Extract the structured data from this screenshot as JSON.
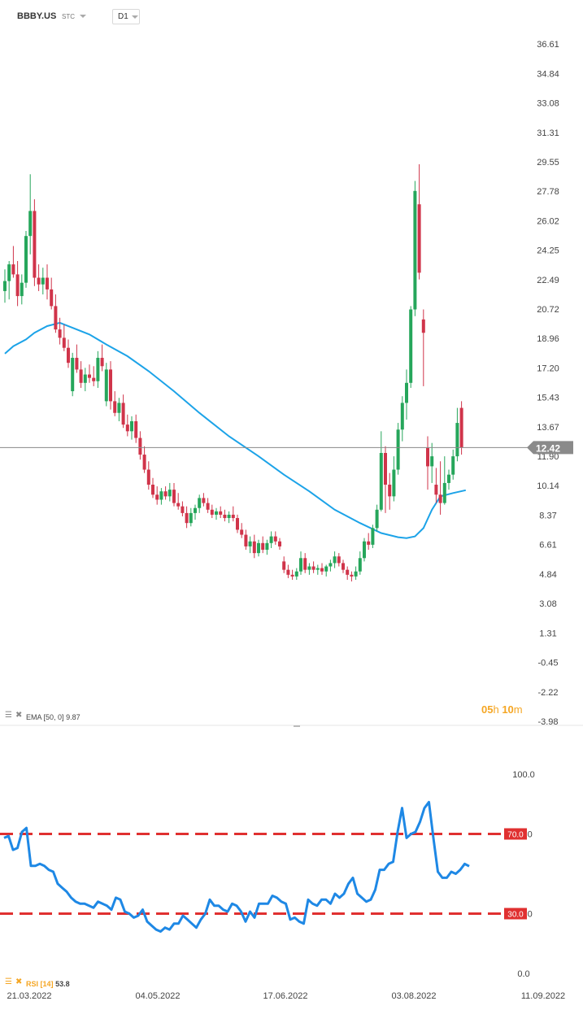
{
  "header": {
    "symbol": "BBBY.US",
    "badge": "STC",
    "timeframe": "D1"
  },
  "timer": {
    "hours": "05",
    "hours_unit": "h",
    "minutes": "10",
    "minutes_unit": "m"
  },
  "colors": {
    "bull": "#26a65b",
    "bear": "#d0344a",
    "ema": "#1ca3e8",
    "rsi": "#1e88e5",
    "rsi_level": "#e03030",
    "price_tag": "#8a8a8a"
  },
  "chart_data": [
    {
      "type": "candlestick",
      "title": "",
      "y_ticks": [
        "36.61",
        "34.84",
        "33.08",
        "31.31",
        "29.55",
        "27.78",
        "26.02",
        "24.25",
        "22.49",
        "20.72",
        "18.96",
        "17.20",
        "15.43",
        "13.67",
        "11.90",
        "10.14",
        "8.37",
        "6.61",
        "4.84",
        "3.08",
        "1.31",
        "-0.45",
        "-2.22",
        "-3.98"
      ],
      "ylim": [
        -3.98,
        36.61
      ],
      "last_price": "12.42",
      "ema_label": "EMA",
      "ema_params": "[50, 0]",
      "ema_value": "9.87",
      "candles": [
        [
          21.8,
          23.1,
          21.1,
          22.4
        ],
        [
          22.4,
          23.6,
          21.3,
          23.4
        ],
        [
          23.4,
          24.5,
          22.6,
          22.8
        ],
        [
          22.8,
          23.6,
          20.9,
          21.5
        ],
        [
          21.5,
          22.8,
          21.0,
          22.3
        ],
        [
          22.3,
          25.4,
          22.0,
          25.1
        ],
        [
          25.1,
          28.8,
          24.0,
          26.6
        ],
        [
          26.6,
          27.3,
          22.1,
          22.6
        ],
        [
          22.6,
          23.4,
          21.8,
          22.2
        ],
        [
          22.2,
          23.2,
          21.6,
          22.6
        ],
        [
          22.6,
          23.4,
          21.3,
          21.9
        ],
        [
          21.9,
          22.6,
          20.7,
          20.9
        ],
        [
          20.9,
          21.6,
          19.3,
          19.5
        ],
        [
          19.5,
          20.2,
          18.6,
          19.0
        ],
        [
          19.0,
          19.8,
          18.2,
          18.4
        ],
        [
          18.4,
          18.9,
          17.2,
          17.5
        ],
        [
          15.8,
          18.1,
          15.5,
          17.8
        ],
        [
          17.8,
          18.6,
          16.9,
          17.1
        ],
        [
          17.1,
          17.6,
          16.0,
          16.3
        ],
        [
          16.3,
          17.2,
          15.8,
          16.8
        ],
        [
          16.8,
          17.4,
          16.3,
          16.6
        ],
        [
          16.6,
          17.3,
          16.1,
          16.4
        ],
        [
          16.4,
          18.2,
          16.0,
          17.8
        ],
        [
          17.8,
          18.6,
          17.0,
          17.3
        ],
        [
          15.2,
          17.5,
          14.9,
          17.1
        ],
        [
          17.1,
          17.6,
          14.7,
          15.2
        ],
        [
          15.2,
          15.8,
          14.3,
          14.5
        ],
        [
          14.5,
          15.4,
          14.0,
          15.1
        ],
        [
          15.1,
          15.6,
          13.6,
          13.8
        ],
        [
          13.8,
          14.4,
          13.1,
          13.4
        ],
        [
          13.4,
          14.3,
          12.9,
          14.0
        ],
        [
          14.0,
          14.4,
          12.7,
          13.0
        ],
        [
          13.0,
          13.4,
          11.7,
          12.0
        ],
        [
          12.0,
          12.5,
          10.9,
          11.1
        ],
        [
          11.1,
          11.6,
          9.9,
          10.2
        ],
        [
          10.2,
          10.6,
          9.4,
          9.6
        ],
        [
          9.6,
          10.1,
          9.0,
          9.3
        ],
        [
          9.3,
          10.0,
          9.0,
          9.8
        ],
        [
          9.8,
          10.1,
          9.3,
          9.5
        ],
        [
          9.5,
          10.3,
          9.2,
          9.9
        ],
        [
          9.9,
          10.3,
          8.9,
          9.1
        ],
        [
          9.1,
          9.7,
          8.7,
          8.9
        ],
        [
          8.9,
          9.2,
          8.3,
          8.5
        ],
        [
          8.5,
          8.9,
          7.6,
          7.9
        ],
        [
          7.9,
          8.8,
          7.7,
          8.5
        ],
        [
          8.5,
          9.0,
          8.1,
          8.8
        ],
        [
          8.8,
          9.6,
          8.5,
          9.4
        ],
        [
          9.4,
          9.7,
          8.9,
          9.1
        ],
        [
          9.1,
          9.4,
          8.5,
          8.7
        ],
        [
          8.7,
          9.0,
          8.2,
          8.4
        ],
        [
          8.4,
          8.8,
          8.1,
          8.6
        ],
        [
          8.6,
          8.9,
          8.2,
          8.4
        ],
        [
          8.4,
          8.7,
          8.0,
          8.2
        ],
        [
          8.2,
          8.6,
          7.9,
          8.4
        ],
        [
          8.4,
          8.9,
          8.0,
          8.2
        ],
        [
          8.2,
          8.4,
          7.3,
          7.5
        ],
        [
          7.5,
          7.9,
          7.0,
          7.2
        ],
        [
          7.2,
          7.5,
          6.3,
          6.5
        ],
        [
          6.5,
          7.1,
          6.1,
          6.8
        ],
        [
          6.8,
          7.2,
          5.8,
          6.1
        ],
        [
          6.1,
          6.9,
          5.9,
          6.7
        ],
        [
          6.7,
          7.1,
          6.1,
          6.3
        ],
        [
          6.3,
          6.9,
          6.0,
          6.7
        ],
        [
          6.7,
          7.4,
          6.4,
          7.1
        ],
        [
          7.1,
          7.4,
          6.6,
          6.8
        ],
        [
          6.8,
          7.0,
          6.3,
          6.5
        ],
        [
          5.6,
          5.9,
          4.9,
          5.1
        ],
        [
          5.1,
          5.4,
          4.6,
          4.8
        ],
        [
          4.8,
          5.1,
          4.5,
          4.7
        ],
        [
          4.7,
          5.2,
          4.5,
          5.0
        ],
        [
          5.0,
          6.2,
          4.8,
          5.8
        ],
        [
          5.8,
          6.1,
          4.9,
          5.1
        ],
        [
          5.1,
          5.5,
          4.8,
          5.3
        ],
        [
          5.3,
          5.6,
          4.9,
          5.1
        ],
        [
          5.1,
          5.4,
          4.8,
          5.2
        ],
        [
          5.2,
          5.5,
          4.8,
          5.0
        ],
        [
          5.0,
          5.4,
          4.7,
          5.3
        ],
        [
          5.3,
          5.7,
          5.0,
          5.5
        ],
        [
          5.5,
          6.2,
          5.2,
          5.9
        ],
        [
          5.9,
          6.1,
          5.3,
          5.5
        ],
        [
          5.5,
          5.7,
          4.9,
          5.1
        ],
        [
          5.1,
          5.3,
          4.5,
          4.8
        ],
        [
          4.8,
          5.0,
          4.4,
          4.7
        ],
        [
          4.7,
          5.3,
          4.5,
          5.0
        ],
        [
          5.0,
          6.2,
          4.8,
          5.8
        ],
        [
          5.8,
          7.0,
          5.6,
          6.8
        ],
        [
          6.8,
          7.3,
          6.3,
          6.6
        ],
        [
          6.6,
          7.8,
          6.4,
          7.6
        ],
        [
          7.6,
          9.0,
          7.4,
          8.7
        ],
        [
          8.7,
          13.4,
          8.6,
          12.1
        ],
        [
          12.1,
          12.5,
          8.5,
          10.2
        ],
        [
          10.2,
          10.9,
          8.7,
          9.5
        ],
        [
          9.5,
          11.9,
          9.2,
          11.1
        ],
        [
          11.1,
          13.9,
          10.8,
          13.5
        ],
        [
          13.5,
          15.5,
          12.8,
          15.1
        ],
        [
          15.1,
          17.1,
          14.1,
          16.3
        ],
        [
          16.3,
          20.9,
          16.0,
          20.7
        ],
        [
          20.7,
          28.4,
          20.3,
          27.8
        ],
        [
          27.0,
          29.4,
          22.5,
          22.9
        ],
        [
          20.1,
          20.7,
          16.1,
          19.3
        ],
        [
          12.4,
          13.1,
          9.9,
          11.3
        ],
        [
          11.3,
          12.7,
          10.3,
          11.9
        ],
        [
          10.2,
          11.2,
          9.1,
          9.6
        ],
        [
          9.6,
          11.6,
          8.4,
          9.1
        ],
        [
          9.1,
          11.9,
          9.0,
          10.3
        ],
        [
          10.3,
          11.1,
          9.9,
          10.8
        ],
        [
          10.8,
          12.3,
          10.5,
          11.9
        ],
        [
          11.9,
          14.8,
          11.6,
          13.9
        ],
        [
          14.8,
          15.2,
          12.0,
          12.42
        ]
      ],
      "ema": [
        [
          0,
          18.05
        ],
        [
          2,
          18.5
        ],
        [
          5,
          18.9
        ],
        [
          7,
          19.3
        ],
        [
          10,
          19.7
        ],
        [
          13,
          19.9
        ],
        [
          16,
          19.6
        ],
        [
          20,
          19.2
        ],
        [
          24,
          18.6
        ],
        [
          29,
          17.9
        ],
        [
          34,
          17.0
        ],
        [
          40,
          15.8
        ],
        [
          46,
          14.5
        ],
        [
          53,
          13.1
        ],
        [
          60,
          11.9
        ],
        [
          66,
          10.8
        ],
        [
          72,
          9.8
        ],
        [
          78,
          8.7
        ],
        [
          84,
          7.9
        ],
        [
          89,
          7.3
        ],
        [
          93,
          7.05
        ],
        [
          95,
          7.0
        ],
        [
          97,
          7.1
        ],
        [
          99,
          7.6
        ],
        [
          101,
          8.7
        ],
        [
          103,
          9.5
        ],
        [
          106,
          9.7
        ],
        [
          109,
          9.87
        ]
      ]
    },
    {
      "type": "line",
      "title": "",
      "y_ticks": [
        "100.0",
        "70.0",
        "30.0",
        "0.0"
      ],
      "ylim": [
        0,
        100
      ],
      "x_ticks": [
        "21.03.2022",
        "04.05.2022",
        "17.06.2022",
        "03.08.2022",
        "11.09.2022"
      ],
      "levels": [
        {
          "value": 70,
          "label": "70.0"
        },
        {
          "value": 30,
          "label": "30.0"
        }
      ],
      "rsi_label": "RSI",
      "rsi_params": "[14]",
      "rsi_value": "53.8",
      "rsi": [
        [
          0,
          68
        ],
        [
          1,
          69
        ],
        [
          2,
          62
        ],
        [
          3,
          63
        ],
        [
          4,
          71
        ],
        [
          5,
          73
        ],
        [
          6,
          54
        ],
        [
          7,
          54
        ],
        [
          8,
          55
        ],
        [
          9,
          54
        ],
        [
          10,
          52
        ],
        [
          11,
          51
        ],
        [
          12,
          45
        ],
        [
          13,
          43
        ],
        [
          14,
          41
        ],
        [
          15,
          38
        ],
        [
          16,
          36
        ],
        [
          17,
          35
        ],
        [
          18,
          35
        ],
        [
          19,
          34
        ],
        [
          20,
          33
        ],
        [
          21,
          36
        ],
        [
          22,
          35
        ],
        [
          23,
          34
        ],
        [
          24,
          32
        ],
        [
          25,
          38
        ],
        [
          26,
          37
        ],
        [
          27,
          31
        ],
        [
          28,
          30
        ],
        [
          29,
          28
        ],
        [
          30,
          29
        ],
        [
          31,
          32
        ],
        [
          32,
          26
        ],
        [
          33,
          24
        ],
        [
          34,
          22
        ],
        [
          35,
          21
        ],
        [
          36,
          23
        ],
        [
          37,
          22
        ],
        [
          38,
          25
        ],
        [
          39,
          25
        ],
        [
          40,
          29
        ],
        [
          41,
          27
        ],
        [
          42,
          25
        ],
        [
          43,
          23
        ],
        [
          44,
          27
        ],
        [
          45,
          30
        ],
        [
          46,
          37
        ],
        [
          47,
          34
        ],
        [
          48,
          34
        ],
        [
          49,
          32
        ],
        [
          50,
          31
        ],
        [
          51,
          35
        ],
        [
          52,
          34
        ],
        [
          53,
          31
        ],
        [
          54,
          26
        ],
        [
          55,
          31
        ],
        [
          56,
          28
        ],
        [
          57,
          35
        ],
        [
          58,
          35
        ],
        [
          59,
          35
        ],
        [
          60,
          39
        ],
        [
          61,
          38
        ],
        [
          62,
          36
        ],
        [
          63,
          35
        ],
        [
          64,
          27
        ],
        [
          65,
          28
        ],
        [
          66,
          26
        ],
        [
          67,
          25
        ],
        [
          68,
          37
        ],
        [
          69,
          35
        ],
        [
          70,
          34
        ],
        [
          71,
          37
        ],
        [
          72,
          37
        ],
        [
          73,
          35
        ],
        [
          74,
          40
        ],
        [
          75,
          38
        ],
        [
          76,
          40
        ],
        [
          77,
          45
        ],
        [
          78,
          48
        ],
        [
          79,
          40
        ],
        [
          80,
          38
        ],
        [
          81,
          36
        ],
        [
          82,
          37
        ],
        [
          83,
          42
        ],
        [
          84,
          52
        ],
        [
          85,
          52
        ],
        [
          86,
          55
        ],
        [
          87,
          56
        ],
        [
          88,
          71
        ],
        [
          89,
          83
        ],
        [
          90,
          68
        ],
        [
          91,
          70
        ],
        [
          92,
          71
        ],
        [
          93,
          76
        ],
        [
          94,
          83
        ],
        [
          95,
          86
        ],
        [
          96,
          68
        ],
        [
          97,
          51
        ],
        [
          98,
          48
        ],
        [
          99,
          48
        ],
        [
          100,
          51
        ],
        [
          101,
          50
        ],
        [
          102,
          52
        ],
        [
          103,
          55
        ],
        [
          104,
          53.8
        ]
      ]
    }
  ]
}
